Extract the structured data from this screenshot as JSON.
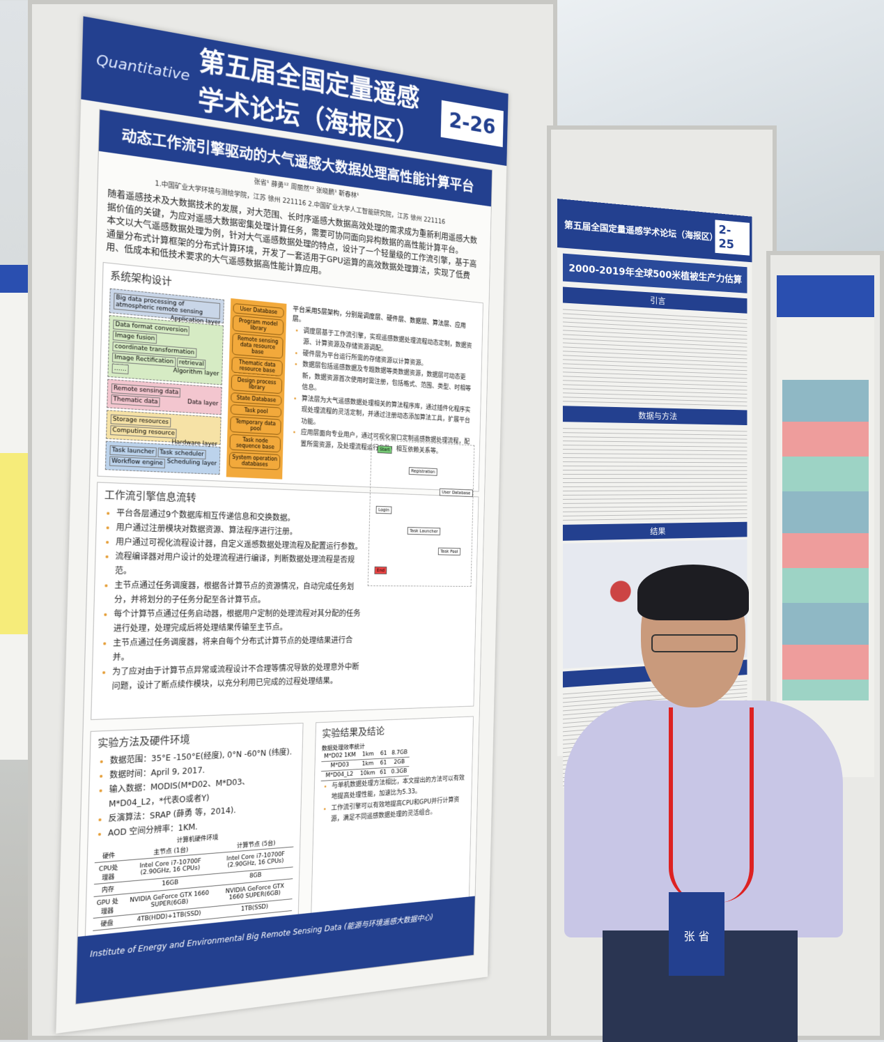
{
  "poster_main": {
    "conference_title": "第五届全国定量遥感学术论坛（海报区）",
    "logo_text": "Quantitative",
    "board_number": "2-26",
    "title": "动态工作流引擎驱动的大气遥感大数据处理高性能计算平台",
    "authors": "张省¹ 薛勇¹² 周丽然¹² 张晓鹏¹ 靳春林¹",
    "affiliations": "1.中国矿业大学环境与测绘学院，江苏 徐州 221116  2.中国矿业大学人工智能研究院，江苏 徐州 221116",
    "abstract": [
      "随着遥感技术及大数据技术的发展，对大范围、长时序遥感大数据高效处理的需求成为重新利用遥感大数据价值的关键，为应对遥感大数据密集处理计算任务，需要可协同面向异构数据的高性能计算平台。",
      "本文以大气遥感数据处理为例，针对大气遥感数据处理的特点，设计了一个轻量级的工作流引擎，基于高通量分布式计算框架的分布式计算环境，开发了一套适用于GPU运算的高效数据处理算法，实现了低费用、低成本和低技术要求的大气遥感数据高性能计算应用。"
    ],
    "architecture": {
      "heading": "系统架构设计",
      "layers": [
        {
          "label": "Application layer",
          "items": [
            "Big data processing of atmospheric remote sensing"
          ]
        },
        {
          "label": "Algorithm layer",
          "items": [
            "Data format conversion",
            "Image fusion",
            "coordinate transformation",
            "Image Rectification",
            "retrieval",
            "……"
          ]
        },
        {
          "label": "Data layer",
          "items": [
            "Remote sensing data",
            "Thematic data"
          ]
        },
        {
          "label": "Hardware layer",
          "items": [
            "Storage resources",
            "Computing resource"
          ]
        },
        {
          "label": "Scheduling layer",
          "items": [
            "Task launcher",
            "Task scheduler",
            "Workflow engine"
          ]
        }
      ],
      "databases": [
        "User Database",
        "Program model library",
        "Remote sensing data resource base",
        "Thematic data resource base",
        "Design process library",
        "State Database",
        "Task pool",
        "Temporary data pool",
        "Task node sequence base",
        "System operation databases"
      ],
      "description_intro": "平台采用5层架构，分别是调度层、硬件层、数据层、算法层、应用层。",
      "description": [
        "调度层基于工作流引擎，实现遥感数据处理流程动态定制，数据资源、计算资源及存储资源调配。",
        "硬件层为平台运行所需的存储资源以计算资源。",
        "数据层包括遥感数据及专题数据等类数据资源，数据层可动态更新，数据资源首次使用时需注册，包括格式、范围、类型、时相等信息。",
        "算法层为大气遥感数据处理相关的算法程序库，通过插件化程序实现处理流程的灵活定制，并通过注册动态添加算法工具，扩展平台功能。",
        "应用层面向专业用户，通过可视化窗口定制遥感数据处理流程，配置所需资源，及处理流程运行参数，相互依赖关系等。"
      ]
    },
    "workflow": {
      "heading": "工作流引擎信息流转",
      "bullets": [
        "平台各层通过9个数据库相互传递信息和交换数据。",
        "用户通过注册模块对数据资源、算法程序进行注册。",
        "用户通过可视化流程设计器，自定义遥感数据处理流程及配置运行参数。",
        "流程编译器对用户设计的处理流程进行编译，判断数据处理流程是否规范。",
        "主节点通过任务调度器，根据各计算节点的资源情况，自动完成任务划分，并将划分的子任务分配至各计算节点。",
        "每个计算节点通过任务启动器，根据用户定制的处理流程对其分配的任务进行处理，处理完成后将处理结果传输至主节点。",
        "主节点通过任务调度器，将来自每个分布式计算节点的处理结果进行合并。",
        "为了应对由于计算节点异常或流程设计不合理等情况导致的处理意外中断问题，设计了断点续作模块，以充分利用已完成的过程处理结果。"
      ],
      "flowchart_nodes": [
        "Start",
        "Registration",
        "User Database",
        "Login",
        "Task Launcher",
        "Task Pool",
        "End"
      ]
    },
    "methods": {
      "heading": "实验方法及硬件环境",
      "items": [
        {
          "label": "数据范围：",
          "value": "35°E -150°E(经度), 0°N -60°N (纬度)."
        },
        {
          "label": "数据时间：",
          "value": "April 9, 2017."
        },
        {
          "label": "输入数据：",
          "value": "MODIS(M*D02、M*D03、M*D04_L2，*代表O或者Y)"
        },
        {
          "label": "反演算法：",
          "value": "SRAP (薛勇 等，2014)."
        },
        {
          "label": "AOD 空间分辨率：",
          "value": "1KM."
        }
      ],
      "hw_table": {
        "title": "计算机硬件环境",
        "columns": [
          "硬件",
          "主节点 (1台)",
          "计算节点 (5台)"
        ],
        "rows": [
          [
            "CPU处理器",
            "Intel Core i7-10700F (2.90GHz, 16 CPUs)",
            "Intel Core i7-10700F (2.90GHz, 16 CPUs)"
          ],
          [
            "内存",
            "16GB",
            "8GB"
          ],
          [
            "GPU 处理器",
            "NVIDIA GeForce GTX 1660 SUPER(6GB)",
            "NVIDIA GeForce GTX 1660 SUPER(6GB)"
          ],
          [
            "硬盘",
            "4TB(HDD)+1TB(SSD)",
            "1TB(SSD)"
          ]
        ]
      }
    },
    "results": {
      "heading": "实验结果及结论",
      "table_title": "数据处理效率统计",
      "rows": [
        [
          "M*D02 1KM",
          "1km",
          "61",
          "8.7GB"
        ],
        [
          "M*D03",
          "1km",
          "61",
          "2GB"
        ],
        [
          "M*D04_L2",
          "10km",
          "61",
          "0.3GB"
        ]
      ],
      "bullets": [
        "与单机数据处理方法相比，本文提出的方法可以有效地提高处理性能，加速比为5.33。",
        "工作流引擎可以有效地提高CPU和GPU并行计算资源，满足不同遥感数据处理的灵活组合。"
      ]
    },
    "footer": "Institute of Energy and Environmental Big Remote Sensing Data (能源与环境遥感大数据中心)"
  },
  "poster_second": {
    "conference_title": "第五届全国定量遥感学术论坛（海报区）",
    "board_number": "2-25",
    "title": "2000-2019年全球500米植被生产力估算",
    "sections": [
      "引言",
      "数据与方法",
      "结果",
      "小结"
    ]
  },
  "badge": {
    "name": "张 省"
  }
}
